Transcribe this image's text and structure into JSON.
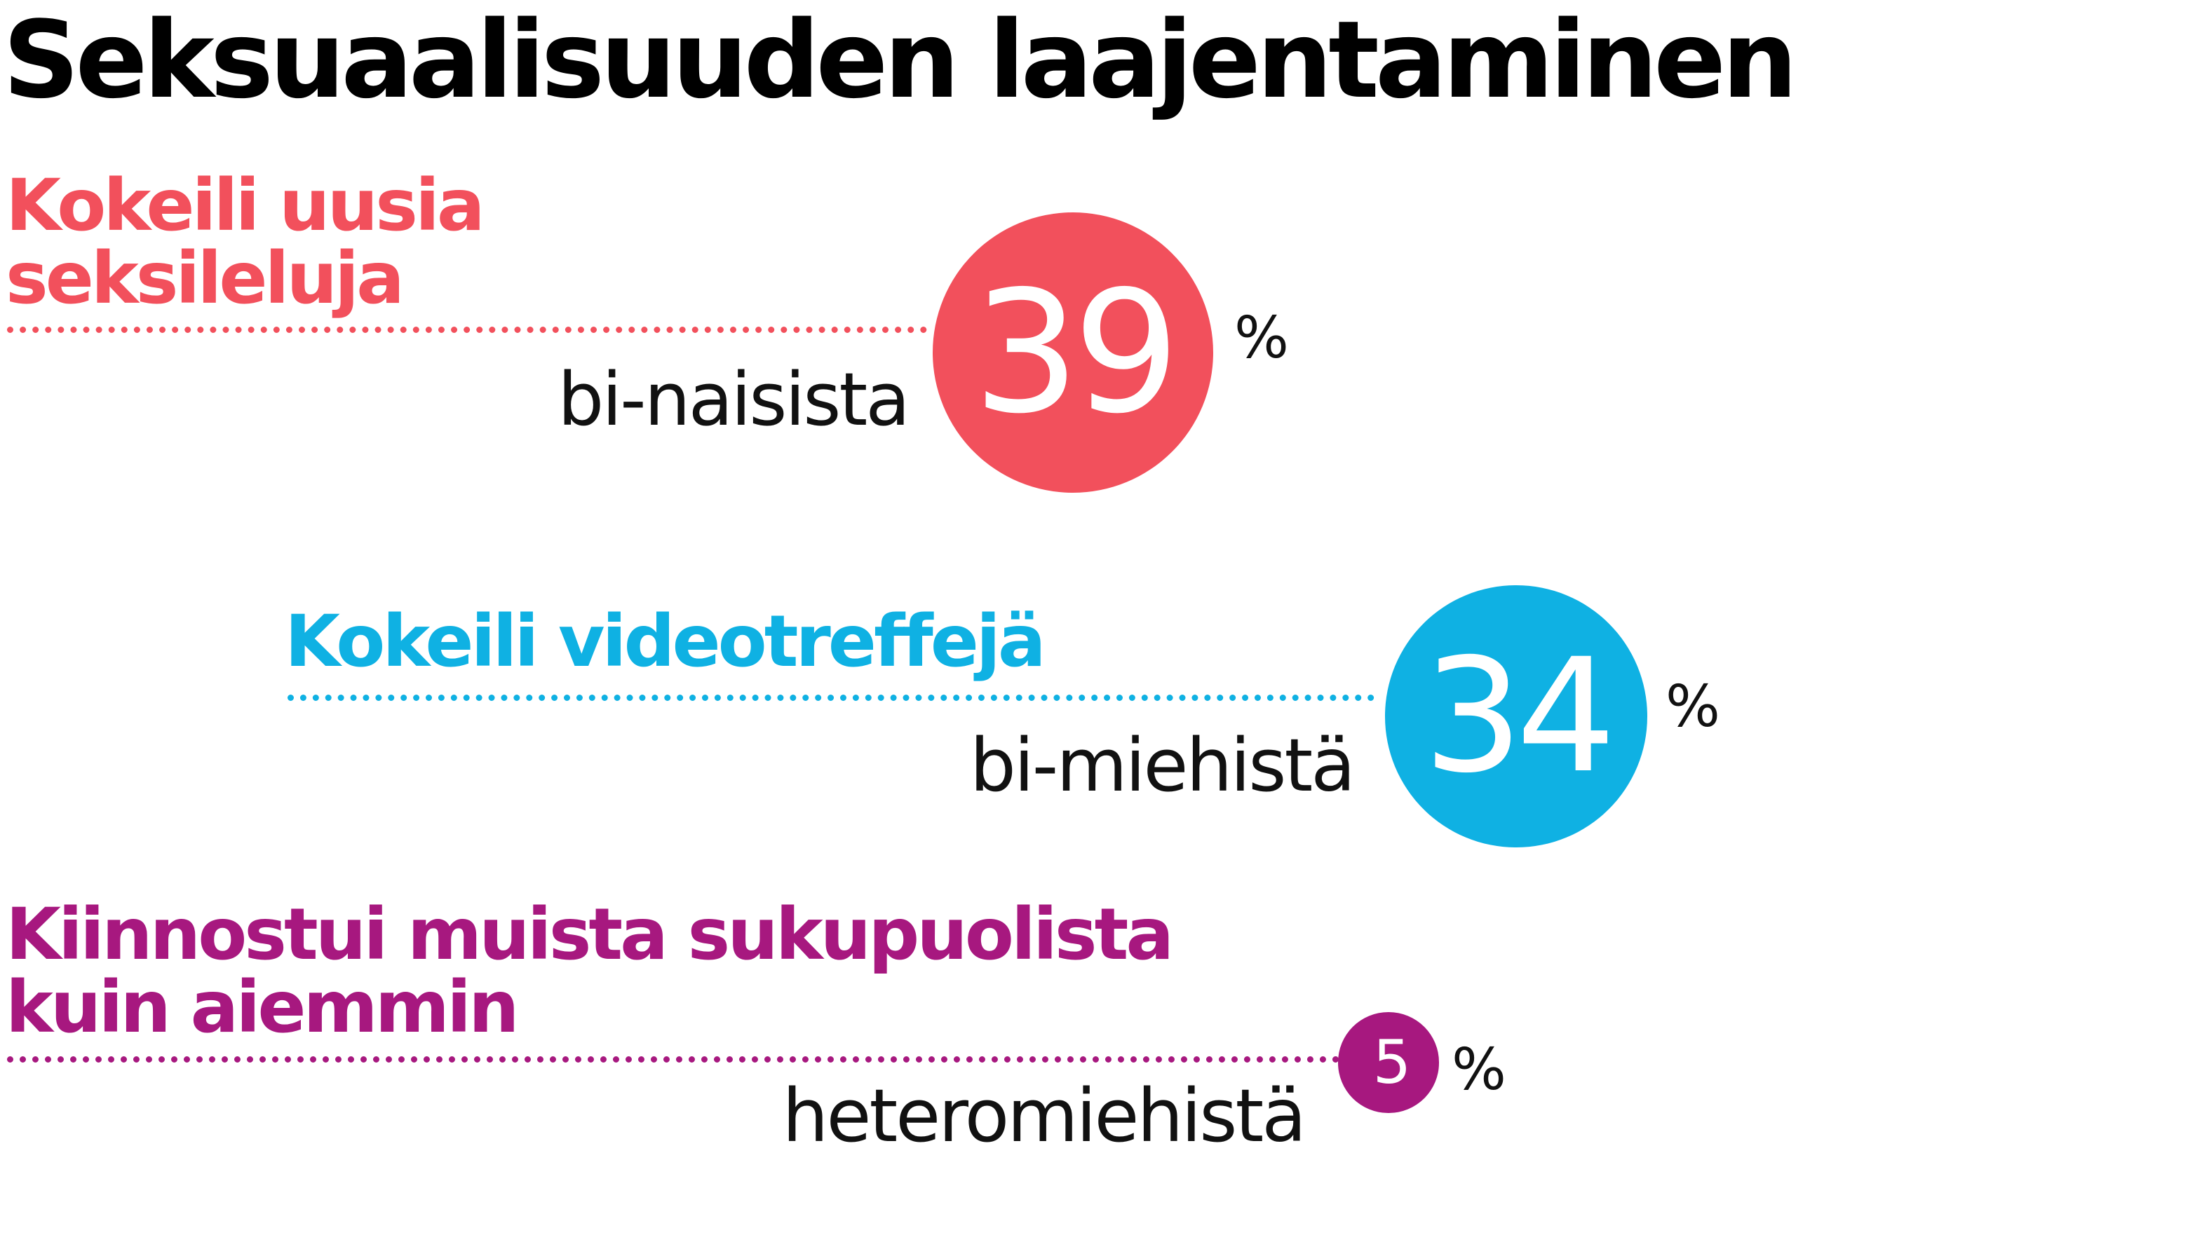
{
  "chart_data": {
    "type": "infographic",
    "title": "Seksuaalisuuden laajentaminen",
    "unit": "%",
    "items": [
      {
        "heading": "Kokeili uusia\nseksileluja",
        "group": "bi-naisista",
        "value": 39,
        "value_label": "39",
        "color": "#f2505c"
      },
      {
        "heading": "Kokeili videotreffejä",
        "group": "bi-miehistä",
        "value": 34,
        "value_label": "34",
        "color": "#0fb1e3"
      },
      {
        "heading": "Kiinnostui muista sukupuolista\nkuin aiemmin",
        "group": "heteromiehistä",
        "value": 5,
        "value_label": "5",
        "color": "#a7187f"
      }
    ]
  }
}
